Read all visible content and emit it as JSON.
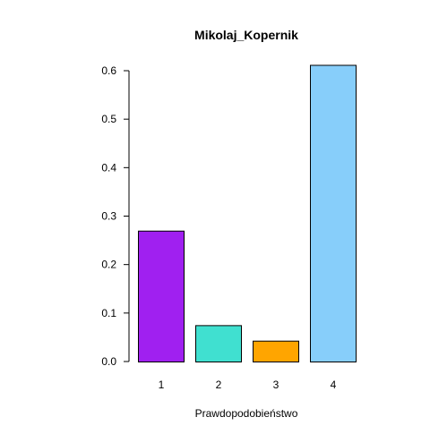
{
  "chart_data": {
    "type": "bar",
    "title": "Mikolaj_Kopernik",
    "xlabel": "Prawdopodobieństwo",
    "ylabel": "",
    "categories": [
      "1",
      "2",
      "3",
      "4"
    ],
    "values": [
      0.27,
      0.075,
      0.043,
      0.612
    ],
    "colors": [
      "#A020F0",
      "#40E0D0",
      "#FFA500",
      "#87CEFA"
    ],
    "ylim": [
      0,
      0.6
    ],
    "yticks": [
      "0.0",
      "0.1",
      "0.2",
      "0.3",
      "0.4",
      "0.5",
      "0.6"
    ],
    "grid": false,
    "legend": "none"
  }
}
